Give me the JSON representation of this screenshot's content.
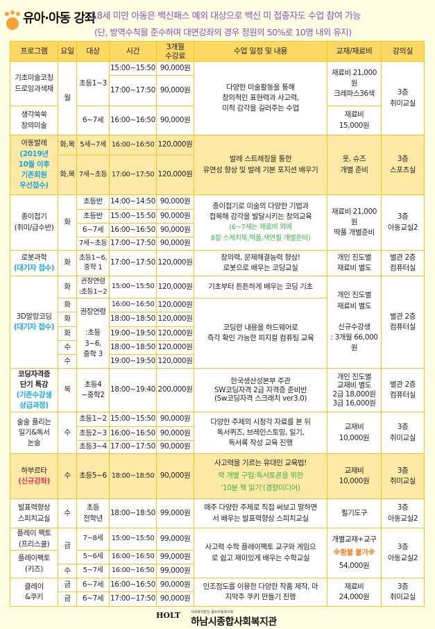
{
  "header": {
    "title": "유아·아동 강좌",
    "notice1": "18세 미만 아동은 백신패스 예외 대상으로 백신 미 접종자도 수업 참여 가능",
    "notice2": "(단, 방역수칙을 준수하며 대면강좌의 경우 정원의 50%로 10명 내외 유지)",
    "icon": "paw-icon"
  },
  "columns": [
    "프로그램",
    "요일",
    "대상",
    "시간",
    "3개월\n수강료",
    "수업 일정 및 내용",
    "교재/재료비",
    "강의실"
  ],
  "programs": [
    {
      "name": "기초미술코칭\n드로잉과색채",
      "day": "월",
      "target": "초등1~3",
      "sessions": [
        {
          "time": "15:00~15:50",
          "fee": "90,000원"
        },
        {
          "time": "17:00~17:50",
          "fee": "90,000원"
        }
      ],
      "content": "다양한 미술활동을 통해\n창의적인 표현력과 사고력,\n미적 감각을 길러주는 수업",
      "material": "재료비 21,000\n원\n크레파스36색",
      "room": "3층\n취미교실"
    },
    {
      "name": "생각쑥쑥\n창의미술",
      "target": "6~7세",
      "time": "16:00~16:50",
      "fee": "90,000원",
      "material": "재료비\n15,000원"
    },
    {
      "name": "아동발레",
      "note": "(2019년\n10월 이후\n기존회원\n우선접수)",
      "sessions": [
        {
          "day": "화,목",
          "target": "5세~7세",
          "time": "16:00~16:50",
          "fee": "120,000원"
        },
        {
          "day": "화,목",
          "target": "7세~초등",
          "time": "17:00~17:50",
          "fee": "120,000원"
        }
      ],
      "content": "발레 스트레칭을 통한\n유연성 향상 및 발레 기본 포지션 배우기",
      "material": "옷, 슈즈\n개별 준비",
      "room": "3층\n스포츠실"
    },
    {
      "name": "종이접기\n(취미/급수반)",
      "day": "화",
      "sessions": [
        {
          "target": "초등반",
          "time": "14:00~14:50",
          "fee": "90,000원"
        },
        {
          "target": "초등반",
          "time": "15:00~15:50",
          "fee": "90,000원"
        },
        {
          "target": "6~7세",
          "time": "16:00~16:50",
          "fee": "90,000원"
        },
        {
          "target": "7세~초등",
          "time": "17:00~17:50",
          "fee": "90,000원"
        }
      ],
      "content": "종이접기로  미술의 다양한 기법과\n접목해 감각을 발달시키는 창의교육",
      "content_note": "(6~7세는 재료비 외에\n8절 스케치북,딱풀,색연필 개별준비)",
      "material": "재료비 21,000\n원\n딱풀 개별준비",
      "room": "3층\n아동교실2"
    },
    {
      "name": "로봇과학",
      "note": "(대기자 접수)",
      "day": "화",
      "target": "초등1~6,\n중학 1",
      "time": "17:00~17:50",
      "fee": "120,000원",
      "content": "창의력, 문제해결능력 향상!\n로봇으로 배우는 코딩교실",
      "material": "개인 진도별\n재료비 별도",
      "room": "별관 2층\n컴퓨터실"
    },
    {
      "name": "3D말랑코딩",
      "note": "(대기자 접수)",
      "first": {
        "day": "화",
        "target": "권장연령\n:초등1~2",
        "time": "15:00~15:50",
        "fee": "120,000원",
        "content": "기초부터 튼튼하게 배우는 코딩 기초"
      },
      "target2": "권장연령\n\n:초등\n3~6,\n중학 3",
      "sessions": [
        {
          "day": "화",
          "time": "16:00~16:50",
          "fee": "120,000원"
        },
        {
          "day": "화",
          "time": "18:00~18:50",
          "fee": "120,000원"
        },
        {
          "day": "화",
          "time": "19:00~19:50",
          "fee": "120,000원"
        },
        {
          "day": "수",
          "time": "18:00~18:50",
          "fee": "120,000원"
        },
        {
          "day": "수",
          "time": "19:00~19:50",
          "fee": "120,000원"
        }
      ],
      "content2": "코딩한 내용을 하드웨어로\n즉각 확인 가능한 피지컬 컴퓨팅 교육",
      "material": "개인 진도별\n재료비 별도\n\n신규수강생\n: 3개월 66,000\n원",
      "room": "별관 2층\n컴퓨터실"
    },
    {
      "name": "코딩자격증\n단기 특강",
      "note": "(기존수강생\n상급과정)",
      "day": "목",
      "target": "초등4\n~중학2",
      "time": "18:00~19:40",
      "fee": "200,000원",
      "content": "한국생산성본부 주관\nSW코딩자격 2급 자격증 준비반\n(Sw코딩자격 스크래치 ver3.0)",
      "material": "개인 진도별\n교재비 별도\n2급 18,000원\n3급 16,000원",
      "room": "별관 2층\n컴퓨터실"
    },
    {
      "name": "술술 풀리는\n일기&독서\n논술",
      "day": "수",
      "sessions": [
        {
          "target": "초등1~2",
          "time": "15:00~15:50",
          "fee": "90,000원"
        },
        {
          "target": "초등2~3",
          "time": "16:00~16:50",
          "fee": "90,000원"
        },
        {
          "target": "초등3~4",
          "time": "17:00~17:50",
          "fee": "90,000원"
        }
      ],
      "content": "다양한 주제의 시청각 자료를 본 뒤\n독서퀴즈, 브레인스토밍, 일기,\n독서록 작성 교육 진행",
      "material": "교재비\n10,000원",
      "room": "3층\n취미교실"
    },
    {
      "name": "하부르타",
      "note": "(신규강좌)",
      "day": "수",
      "target": "초등5~6",
      "time": "18:00~18:50",
      "fee": "90,000원",
      "content": "사고력을 기르는 유대인 교육법!",
      "content_note": "책 개별 구입:독서토론을 위한\n'10분 책 읽기'(경향미디어)",
      "material": "교재비\n10,000원",
      "room": "3층\n취미교실"
    },
    {
      "name": "발표력향상\n스피치교실",
      "day": "수",
      "target": "초등\n전학년",
      "time": "18:00~18:50",
      "fee": "99,000원",
      "content": "매주 다양한 주제로 직접 써보고 말하면\n서 배우는 발표력향상 스피치교실",
      "material": "필기도구",
      "room": "3층\n아동교실2"
    },
    {
      "name": "플레이 팩토\n(프리스쿨)",
      "name2": "플레이팩토\n(키즈)",
      "sessions": [
        {
          "day": "금",
          "target": "7~8세",
          "time": "15:00~15:50",
          "fee": "99,000원"
        },
        {
          "target": "5~6세",
          "time": "16:00~16:50",
          "fee": "99,000원"
        },
        {
          "day": "수",
          "target": "5~7세",
          "time": "16:00~16:50",
          "fee": "99,000원"
        }
      ],
      "content": "사고력 수학 플레이팩토 교구와 게임으\n로 쉽고 재미있게 배우는 수학교실",
      "material": "개별교재+교구",
      "warning": "※환불 불가※",
      "price": "54,000원",
      "room": "3층\n아동교실2"
    },
    {
      "name": "클레이\n&쿠키",
      "sessions": [
        {
          "day": "금",
          "target": "6~7세",
          "time": "16:00~16:50",
          "fee": "90,000원"
        },
        {
          "day": "금",
          "target": "6~7세",
          "time": "17:00~17:50",
          "fee": "90,000원"
        }
      ],
      "content": "인조점도를 이용한 다양한 작품 제작, 마\n지막주 쿠키 만들기 진행",
      "material": "재료비\n24,000원",
      "room": "3층\n취미교실"
    }
  ],
  "footer": {
    "org": "하남시종합사회복지관",
    "sub": "사회복지법인 홀트아동복지회",
    "logo": "HOLT"
  },
  "colors": {
    "border": "#f7c31c",
    "header_bg": "#fdd862",
    "highlight_bg": "#fee9a6",
    "notice": "#8e4fc0",
    "note_blue": "#19a6e6",
    "note_green": "#3cb14a",
    "note_red": "#e93354",
    "warning": "#f27b22"
  }
}
